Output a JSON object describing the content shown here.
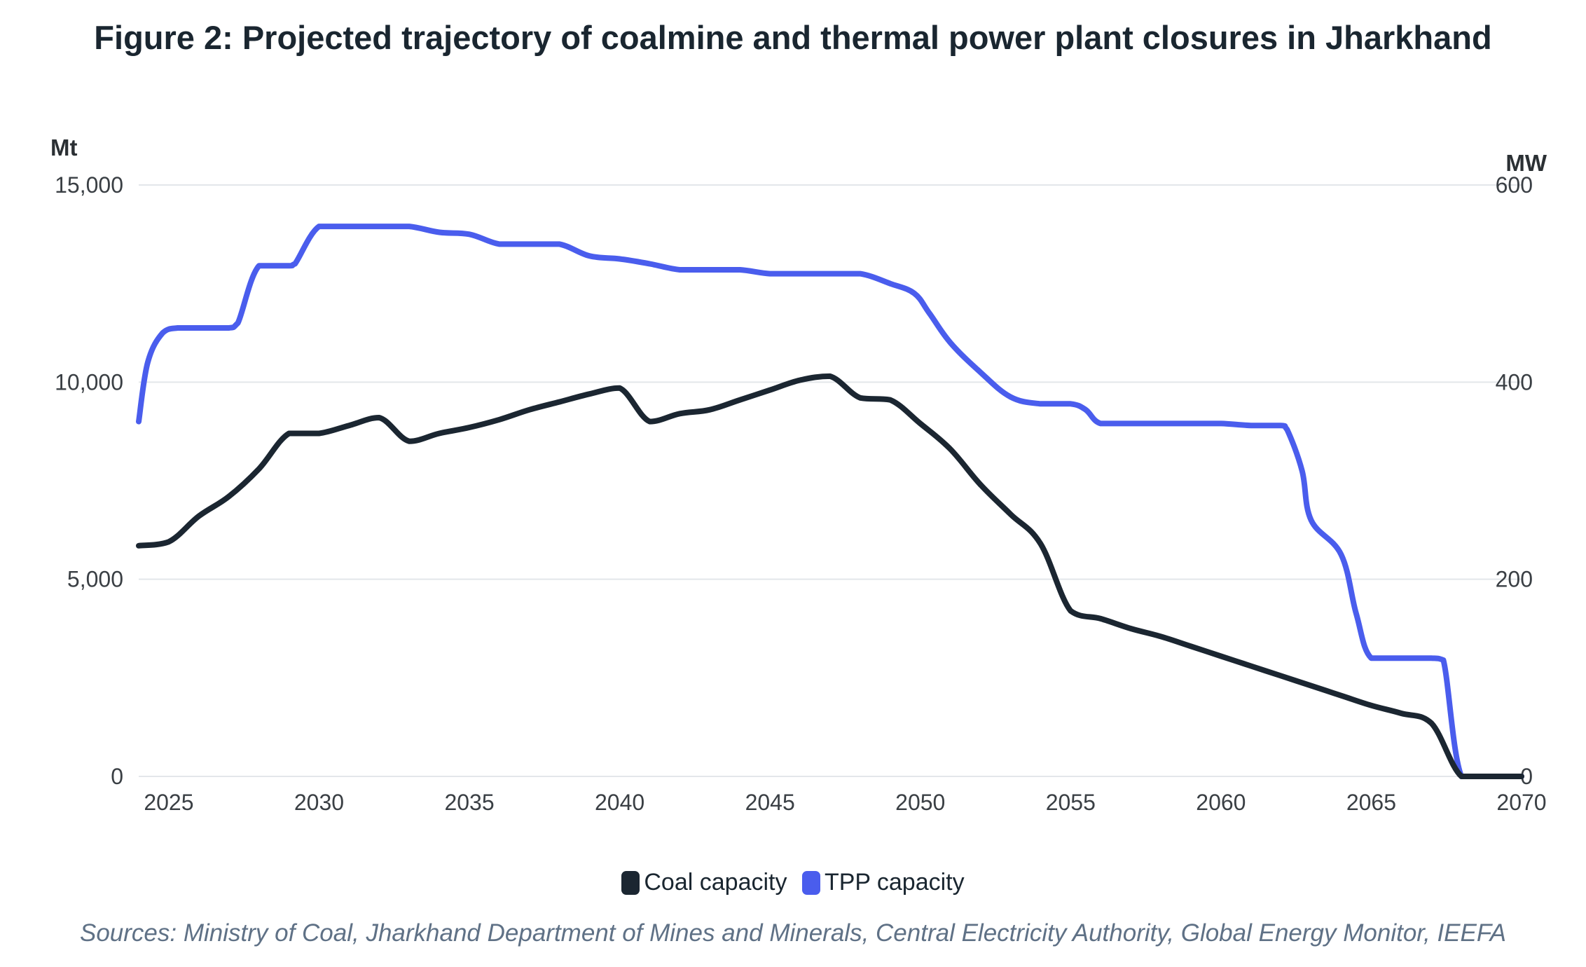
{
  "title": "Figure 2: Projected trajectory of coalmine and thermal power plant closures in Jharkhand",
  "source": "Sources: Ministry of Coal, Jharkhand Department of Mines and Minerals, Central Electricity Authority, Global Energy Monitor, IEEFA",
  "chart_data": {
    "type": "line",
    "ylabel_left": "Mt",
    "ylabel_right": "MW",
    "xlim": [
      2024,
      2070
    ],
    "ylim_left": [
      0,
      15000
    ],
    "ylim_right": [
      0,
      600
    ],
    "x_ticks": [
      "2025",
      "2030",
      "2035",
      "2040",
      "2045",
      "2050",
      "2055",
      "2060",
      "2065",
      "2070"
    ],
    "y_ticks_left": [
      "0",
      "5,000",
      "10,000",
      "15,000"
    ],
    "y_ticks_right": [
      "0",
      "200",
      "400",
      "600"
    ],
    "grid": true,
    "legend": "bottom-center",
    "series": [
      {
        "name": "Coal capacity",
        "axis": "left",
        "color": "#1b2631",
        "x": [
          2024,
          2025,
          2026,
          2027,
          2028,
          2029,
          2030,
          2031,
          2032,
          2033,
          2034,
          2035,
          2036,
          2037,
          2038,
          2039,
          2040,
          2041,
          2042,
          2043,
          2044,
          2045,
          2046,
          2047,
          2048,
          2049,
          2050,
          2051,
          2052,
          2053,
          2054,
          2055,
          2056,
          2057,
          2058,
          2059,
          2060,
          2061,
          2062,
          2063,
          2064,
          2065,
          2066,
          2067,
          2068,
          2069,
          2070
        ],
        "values": [
          5850,
          5950,
          6600,
          7100,
          7800,
          8700,
          8700,
          8900,
          9100,
          8500,
          8700,
          8850,
          9050,
          9300,
          9500,
          9700,
          9850,
          9000,
          9200,
          9300,
          9550,
          9800,
          10050,
          10150,
          9600,
          9550,
          8950,
          8300,
          7400,
          6650,
          5900,
          4200,
          4000,
          3750,
          3550,
          3300,
          3050,
          2800,
          2550,
          2300,
          2050,
          1800,
          1600,
          1350,
          0,
          0,
          0
        ]
      },
      {
        "name": "TPP capacity",
        "axis": "right",
        "color": "#4a5ded",
        "x": [
          2024,
          2024.3,
          2024.8,
          2025.3,
          2026,
          2027,
          2027.3,
          2028,
          2029,
          2029.2,
          2030,
          2031,
          2032,
          2033,
          2034,
          2035,
          2036,
          2037,
          2038,
          2039,
          2040,
          2041,
          2042,
          2043,
          2044,
          2045,
          2046,
          2047,
          2048,
          2049,
          2049.8,
          2050.3,
          2051,
          2052,
          2053,
          2054,
          2055,
          2055.5,
          2056,
          2057,
          2058,
          2059,
          2060,
          2061,
          2062,
          2062.2,
          2062.7,
          2063,
          2064,
          2064.5,
          2065,
          2066,
          2067,
          2067.4,
          2068,
          2069,
          2070
        ],
        "values": [
          360,
          420,
          450,
          455,
          455,
          455,
          460,
          518,
          518,
          520,
          558,
          558,
          558,
          558,
          552,
          550,
          540,
          540,
          540,
          528,
          525,
          520,
          514,
          514,
          514,
          510,
          510,
          510,
          510,
          500,
          490,
          470,
          440,
          410,
          385,
          378,
          378,
          372,
          358,
          358,
          358,
          358,
          358,
          356,
          356,
          352,
          310,
          260,
          225,
          165,
          120,
          120,
          120,
          118,
          0,
          0,
          0
        ]
      }
    ]
  }
}
